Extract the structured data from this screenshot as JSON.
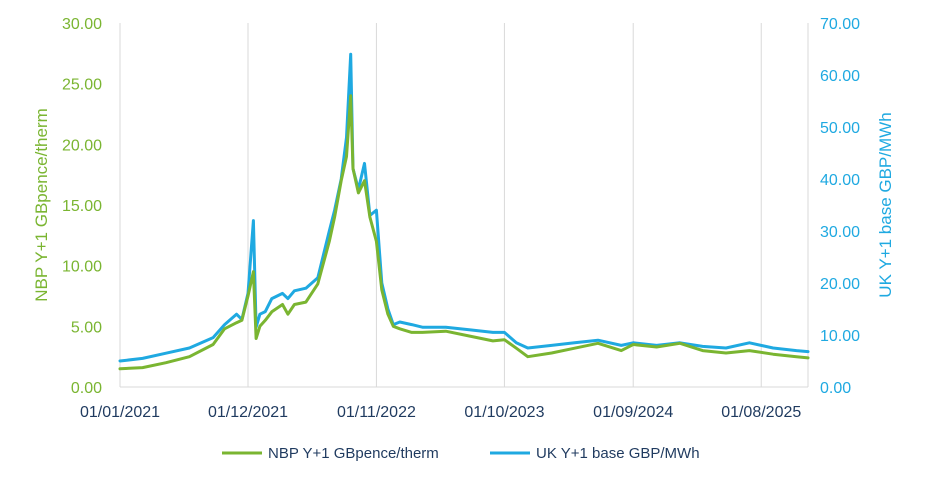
{
  "chart_data": {
    "type": "line",
    "colors": {
      "nbp": "#7ab531",
      "uk": "#1fa9e1",
      "grid": "#d9d9d9",
      "text": "#1f3a5f"
    },
    "ylabel_left": "NBP Y+1 GBpence/therm",
    "ylabel_right": "UK Y+1 base GBP/MWh",
    "ylim_left": [
      0,
      30
    ],
    "ylim_right": [
      0,
      70
    ],
    "y_ticks_left": [
      "0.00",
      "5.00",
      "10.00",
      "15.00",
      "20.00",
      "25.00",
      "30.00"
    ],
    "y_ticks_right": [
      "0.00",
      "10.00",
      "20.00",
      "30.00",
      "40.00",
      "50.00",
      "60.00",
      "70.00"
    ],
    "x_ticks": [
      "01/01/2021",
      "01/12/2021",
      "01/11/2022",
      "01/10/2023",
      "01/09/2024",
      "01/08/2025"
    ],
    "xlim": [
      "01/01/2021",
      "01/12/2025"
    ],
    "legend_position": "bottom",
    "grid": "vertical",
    "series": [
      {
        "name": "NBP Y+1 GBpence/therm",
        "axis": "left",
        "x": [
          "01/01/2021",
          "01/03/2021",
          "01/05/2021",
          "01/07/2021",
          "01/09/2021",
          "01/10/2021",
          "01/11/2021",
          "15/11/2021",
          "01/12/2021",
          "15/12/2021",
          "22/12/2021",
          "01/01/2022",
          "15/01/2022",
          "01/02/2022",
          "01/03/2022",
          "15/03/2022",
          "01/04/2022",
          "01/05/2022",
          "01/06/2022",
          "01/07/2022",
          "15/07/2022",
          "01/08/2022",
          "15/08/2022",
          "26/08/2022",
          "01/09/2022",
          "15/09/2022",
          "01/10/2022",
          "15/10/2022",
          "01/11/2022",
          "15/11/2022",
          "01/12/2022",
          "15/12/2022",
          "01/01/2023",
          "01/02/2023",
          "01/03/2023",
          "01/05/2023",
          "01/07/2023",
          "01/09/2023",
          "01/10/2023",
          "01/11/2023",
          "01/12/2023",
          "01/02/2024",
          "01/04/2024",
          "01/06/2024",
          "01/08/2024",
          "01/09/2024",
          "01/11/2024",
          "01/01/2025",
          "01/03/2025",
          "01/05/2025",
          "01/07/2025",
          "01/09/2025",
          "01/11/2025",
          "01/12/2025"
        ],
        "values": [
          1.5,
          1.6,
          2.0,
          2.5,
          3.5,
          4.8,
          5.3,
          5.5,
          7.5,
          9.5,
          4.0,
          5.0,
          5.5,
          6.2,
          6.8,
          6.0,
          6.8,
          7.0,
          8.5,
          12.0,
          14.0,
          17.0,
          19.0,
          24.0,
          18.0,
          16.0,
          17.0,
          14.0,
          12.0,
          8.0,
          6.0,
          5.0,
          4.8,
          4.5,
          4.5,
          4.6,
          4.2,
          3.8,
          3.9,
          3.2,
          2.5,
          2.8,
          3.2,
          3.6,
          3.0,
          3.5,
          3.3,
          3.6,
          3.0,
          2.8,
          3.0,
          2.7,
          2.5,
          2.4
        ]
      },
      {
        "name": "UK Y+1 base GBP/MWh",
        "axis": "right",
        "x": [
          "01/01/2021",
          "01/03/2021",
          "01/05/2021",
          "01/07/2021",
          "01/09/2021",
          "01/10/2021",
          "01/11/2021",
          "15/11/2021",
          "01/12/2021",
          "15/12/2021",
          "22/12/2021",
          "01/01/2022",
          "15/01/2022",
          "01/02/2022",
          "01/03/2022",
          "15/03/2022",
          "01/04/2022",
          "01/05/2022",
          "01/06/2022",
          "01/07/2022",
          "15/07/2022",
          "01/08/2022",
          "15/08/2022",
          "26/08/2022",
          "01/09/2022",
          "15/09/2022",
          "01/10/2022",
          "15/10/2022",
          "01/11/2022",
          "15/11/2022",
          "01/12/2022",
          "15/12/2022",
          "01/01/2023",
          "01/02/2023",
          "01/03/2023",
          "01/05/2023",
          "01/07/2023",
          "01/09/2023",
          "01/10/2023",
          "01/11/2023",
          "01/12/2023",
          "01/02/2024",
          "01/04/2024",
          "01/06/2024",
          "01/08/2024",
          "01/09/2024",
          "01/11/2024",
          "01/01/2025",
          "01/03/2025",
          "01/05/2025",
          "01/07/2025",
          "01/09/2025",
          "01/11/2025",
          "01/12/2025"
        ],
        "values": [
          5.0,
          5.5,
          6.5,
          7.5,
          9.5,
          12.0,
          14.0,
          13.0,
          18.0,
          32.0,
          11.5,
          14.0,
          14.5,
          17.0,
          18.0,
          17.0,
          18.5,
          19.0,
          21.0,
          30.0,
          34.0,
          40.0,
          48.0,
          64.0,
          42.0,
          38.0,
          43.0,
          33.0,
          34.0,
          20.0,
          15.0,
          12.0,
          12.5,
          12.0,
          11.5,
          11.5,
          11.0,
          10.5,
          10.5,
          8.5,
          7.5,
          8.0,
          8.5,
          9.0,
          8.0,
          8.5,
          8.0,
          8.5,
          7.8,
          7.5,
          8.5,
          7.5,
          7.0,
          6.8
        ]
      }
    ]
  }
}
